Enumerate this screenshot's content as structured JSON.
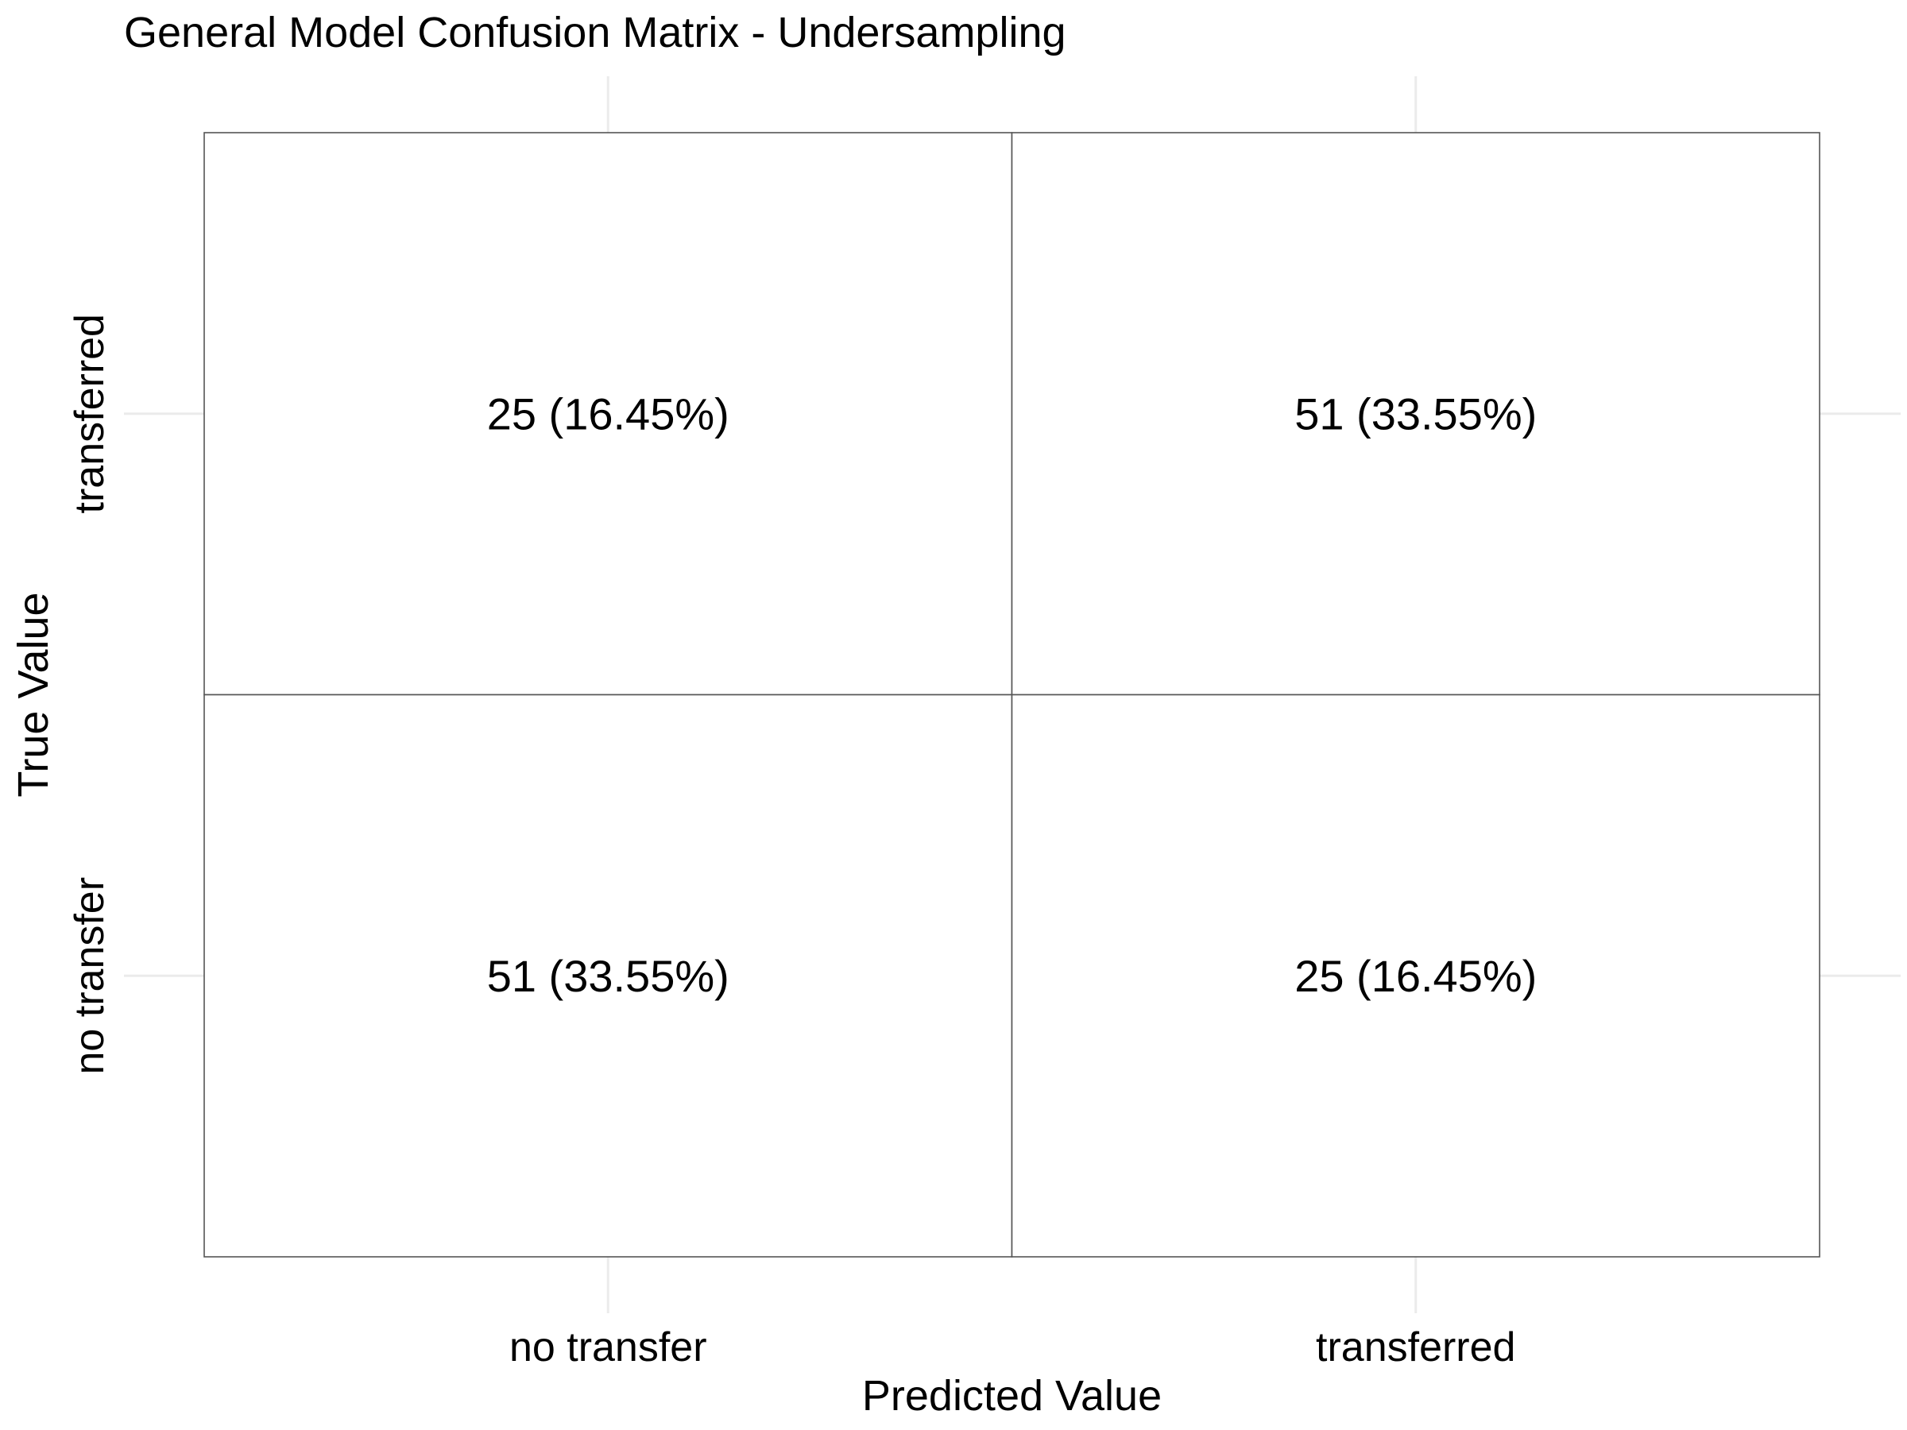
{
  "chart_data": {
    "type": "heatmap",
    "title": "General Model Confusion Matrix - Undersampling",
    "xlabel": "Predicted Value",
    "ylabel": "True Value",
    "x_categories": [
      "no transfer",
      "transferred"
    ],
    "y_categories": [
      "no transfer",
      "transferred"
    ],
    "cells": [
      {
        "x": "no transfer",
        "y": "transferred",
        "count": 25,
        "label": "25 (16.45%)"
      },
      {
        "x": "transferred",
        "y": "transferred",
        "count": 51,
        "label": "51 (33.55%)"
      },
      {
        "x": "no transfer",
        "y": "no transfer",
        "count": 51,
        "label": "51 (33.55%)"
      },
      {
        "x": "transferred",
        "y": "no transfer",
        "count": 25,
        "label": "25 (16.45%)"
      }
    ],
    "grid": true,
    "legend": "none"
  }
}
